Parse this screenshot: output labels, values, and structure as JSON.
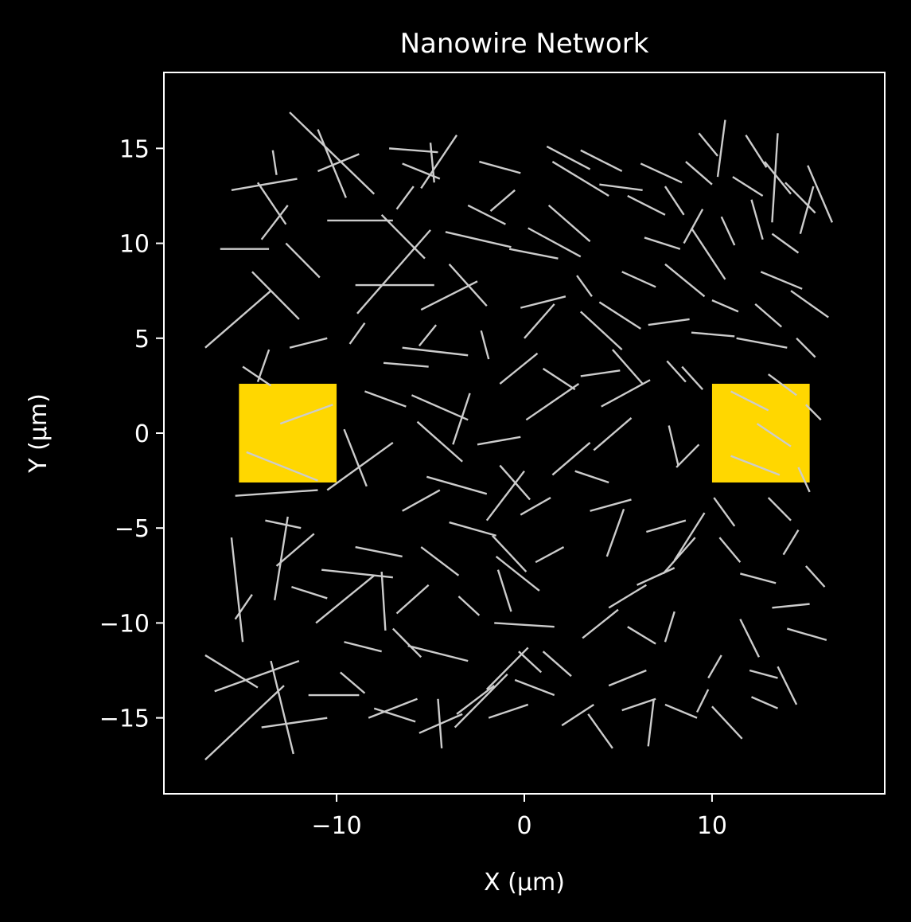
{
  "chart_data": {
    "type": "scatter",
    "title": "Nanowire Network",
    "xlabel": "X (µm)",
    "ylabel": "Y (µm)",
    "xlim": [
      -19.2,
      19.2
    ],
    "ylim": [
      -19.0,
      19.0
    ],
    "xticks": [
      -10,
      0,
      10
    ],
    "xtick_labels": [
      "−10",
      "0",
      "10"
    ],
    "yticks": [
      15,
      10,
      5,
      0,
      -5,
      -10,
      -15
    ],
    "ytick_labels": [
      "15",
      "10",
      "5",
      "0",
      "−5",
      "−10",
      "−15"
    ],
    "grid": false,
    "colors": {
      "background": "#000000",
      "axes": "#ffffff",
      "wire": "#cccccc",
      "electrode": "#ffd700"
    },
    "electrodes": [
      {
        "x": [
          -15.2,
          -10.0
        ],
        "y": [
          -2.6,
          2.6
        ]
      },
      {
        "x": [
          10.0,
          15.2
        ],
        "y": [
          -2.6,
          2.6
        ]
      }
    ],
    "wires": [
      [
        -12.5,
        16.9,
        -8.0,
        12.6
      ],
      [
        -11.0,
        16.0,
        -9.5,
        12.4
      ],
      [
        -7.2,
        15.0,
        -4.6,
        14.8
      ],
      [
        -13.4,
        14.9,
        -13.2,
        13.6
      ],
      [
        -14.2,
        13.2,
        -12.7,
        11.0
      ],
      [
        -15.6,
        12.8,
        -12.1,
        13.4
      ],
      [
        -16.2,
        9.7,
        -13.6,
        9.7
      ],
      [
        -14.5,
        8.5,
        -12.0,
        6.0
      ],
      [
        -17.0,
        4.5,
        -13.5,
        7.5
      ],
      [
        -15.0,
        3.5,
        -13.5,
        2.5
      ],
      [
        -12.5,
        4.5,
        -10.5,
        5.0
      ],
      [
        -13.0,
        0.5,
        -10.2,
        1.5
      ],
      [
        -14.8,
        -1.0,
        -11.0,
        -2.5
      ],
      [
        -15.4,
        -3.3,
        -11.0,
        -3.0
      ],
      [
        -12.6,
        -4.4,
        -13.3,
        -8.8
      ],
      [
        -15.6,
        -5.5,
        -15.0,
        -11.0
      ],
      [
        -17.0,
        -11.7,
        -14.2,
        -13.4
      ],
      [
        -16.5,
        -13.6,
        -12.0,
        -12.0
      ],
      [
        -17.0,
        -17.2,
        -12.8,
        -13.3
      ],
      [
        -13.5,
        -12.0,
        -12.3,
        -16.9
      ],
      [
        -11.5,
        -13.8,
        -8.8,
        -13.8
      ],
      [
        -14.0,
        -15.5,
        -10.5,
        -15.0
      ],
      [
        -9.8,
        -12.6,
        -8.5,
        -13.7
      ],
      [
        -11.1,
        -10.0,
        -8.0,
        -7.5
      ],
      [
        -9.0,
        -6.0,
        -6.5,
        -6.5
      ],
      [
        -10.8,
        -7.2,
        -7.0,
        -7.6
      ],
      [
        -7.6,
        -7.3,
        -7.4,
        -10.4
      ],
      [
        -10.5,
        -3.0,
        -7.0,
        -0.5
      ],
      [
        -8.5,
        2.2,
        -6.3,
        1.4
      ],
      [
        -9.3,
        4.7,
        -8.5,
        5.8
      ],
      [
        -8.9,
        6.3,
        -5.0,
        10.7
      ],
      [
        -9.0,
        7.8,
        -4.8,
        7.8
      ],
      [
        -10.5,
        11.2,
        -7.0,
        11.2
      ],
      [
        -11.0,
        13.8,
        -8.8,
        14.7
      ],
      [
        -7.6,
        11.5,
        -5.3,
        9.2
      ],
      [
        -6.5,
        14.2,
        -4.5,
        13.4
      ],
      [
        -5.0,
        15.3,
        -4.8,
        13.2
      ],
      [
        -3.6,
        15.7,
        -5.5,
        12.9
      ],
      [
        -2.4,
        14.3,
        -0.2,
        13.7
      ],
      [
        -3.0,
        12.0,
        -1.0,
        11.0
      ],
      [
        -4.2,
        10.6,
        -0.7,
        9.8
      ],
      [
        -4.0,
        8.9,
        -2.0,
        6.7
      ],
      [
        -5.5,
        6.5,
        -2.5,
        8.0
      ],
      [
        -6.5,
        4.5,
        -3.0,
        4.1
      ],
      [
        -7.5,
        3.7,
        -5.1,
        3.5
      ],
      [
        -6.0,
        2.0,
        -3.0,
        0.7
      ],
      [
        -5.7,
        0.6,
        -3.3,
        -1.5
      ],
      [
        -5.2,
        -2.3,
        -2.0,
        -3.2
      ],
      [
        -4.0,
        -4.7,
        -1.5,
        -5.4
      ],
      [
        -6.5,
        -4.1,
        -4.5,
        -3.0
      ],
      [
        -5.5,
        -6.0,
        -3.5,
        -7.5
      ],
      [
        -6.8,
        -9.5,
        -5.1,
        -8.0
      ],
      [
        -7.0,
        -10.3,
        -5.5,
        -11.8
      ],
      [
        -6.2,
        -11.2,
        -3.0,
        -12.0
      ],
      [
        -8.0,
        -14.5,
        -5.8,
        -15.2
      ],
      [
        -8.3,
        -15.0,
        -5.7,
        -14.0
      ],
      [
        -5.6,
        -15.8,
        -3.3,
        -14.8
      ],
      [
        -4.4,
        -16.6,
        -4.6,
        -14.0
      ],
      [
        -3.6,
        -14.8,
        -1.6,
        -13.3
      ],
      [
        -3.7,
        -15.5,
        -0.9,
        -12.7
      ],
      [
        -2.0,
        -13.5,
        0.2,
        -11.3
      ],
      [
        -1.6,
        -10.0,
        1.6,
        -10.2
      ],
      [
        -0.7,
        -9.4,
        -1.4,
        -7.2
      ],
      [
        0.1,
        -7.3,
        -1.7,
        -5.4
      ],
      [
        -1.5,
        -6.5,
        0.8,
        -8.3
      ],
      [
        -0.2,
        -4.3,
        1.4,
        -3.4
      ],
      [
        -2.0,
        -4.6,
        0.0,
        -2.0
      ],
      [
        -2.5,
        -0.6,
        -0.2,
        -0.2
      ],
      [
        0.1,
        0.7,
        2.9,
        2.6
      ],
      [
        -1.3,
        2.6,
        0.7,
        4.2
      ],
      [
        0.0,
        5.0,
        1.6,
        6.8
      ],
      [
        -0.2,
        6.6,
        2.2,
        7.2
      ],
      [
        -0.8,
        9.7,
        1.8,
        9.2
      ],
      [
        0.2,
        10.8,
        3.0,
        9.3
      ],
      [
        1.3,
        12.0,
        3.5,
        10.1
      ],
      [
        1.5,
        14.3,
        4.5,
        12.5
      ],
      [
        1.2,
        15.1,
        3.5,
        13.9
      ],
      [
        3.0,
        14.9,
        5.2,
        13.8
      ],
      [
        4.0,
        13.1,
        6.3,
        12.8
      ],
      [
        5.5,
        12.5,
        7.5,
        11.5
      ],
      [
        6.2,
        14.2,
        8.4,
        13.2
      ],
      [
        7.5,
        13.0,
        8.5,
        11.5
      ],
      [
        8.6,
        14.3,
        10.0,
        13.1
      ],
      [
        9.3,
        15.8,
        10.3,
        14.6
      ],
      [
        10.7,
        16.5,
        10.3,
        13.5
      ],
      [
        11.8,
        15.7,
        12.9,
        14.0
      ],
      [
        12.8,
        14.3,
        14.2,
        12.6
      ],
      [
        13.5,
        15.8,
        13.2,
        11.1
      ],
      [
        13.9,
        13.2,
        15.5,
        11.6
      ],
      [
        15.1,
        14.1,
        16.4,
        11.1
      ],
      [
        15.4,
        13.0,
        14.7,
        10.5
      ],
      [
        13.2,
        10.5,
        14.6,
        9.5
      ],
      [
        12.1,
        12.3,
        12.7,
        10.2
      ],
      [
        11.1,
        13.5,
        12.7,
        12.5
      ],
      [
        10.5,
        11.4,
        11.2,
        9.9
      ],
      [
        9.5,
        11.8,
        8.5,
        10.0
      ],
      [
        8.9,
        10.8,
        10.7,
        8.1
      ],
      [
        7.5,
        8.9,
        9.6,
        7.2
      ],
      [
        6.4,
        10.3,
        8.3,
        9.7
      ],
      [
        5.2,
        8.5,
        7.0,
        7.7
      ],
      [
        4.0,
        6.9,
        6.2,
        5.5
      ],
      [
        2.8,
        8.3,
        3.6,
        7.2
      ],
      [
        3.0,
        6.4,
        5.2,
        4.4
      ],
      [
        4.7,
        4.4,
        6.3,
        2.6
      ],
      [
        6.6,
        5.7,
        8.8,
        6.0
      ],
      [
        7.6,
        3.8,
        8.6,
        2.7
      ],
      [
        8.9,
        5.3,
        11.2,
        5.1
      ],
      [
        10.0,
        7.0,
        11.4,
        6.4
      ],
      [
        11.3,
        5.0,
        14.0,
        4.5
      ],
      [
        12.3,
        6.8,
        13.7,
        5.6
      ],
      [
        12.6,
        8.5,
        14.8,
        7.6
      ],
      [
        14.2,
        7.5,
        16.2,
        6.1
      ],
      [
        14.5,
        5.0,
        15.5,
        4.0
      ],
      [
        13.0,
        3.1,
        14.5,
        2.0
      ],
      [
        11.0,
        2.2,
        13.0,
        1.2
      ],
      [
        12.4,
        0.5,
        14.2,
        -0.7
      ],
      [
        11.0,
        -1.2,
        13.6,
        -2.2
      ],
      [
        13.0,
        -3.4,
        14.2,
        -4.6
      ],
      [
        10.1,
        -3.4,
        11.2,
        -4.9
      ],
      [
        9.6,
        -4.2,
        8.0,
        -6.7
      ],
      [
        10.4,
        -5.5,
        11.5,
        -6.8
      ],
      [
        11.5,
        -7.4,
        13.4,
        -7.9
      ],
      [
        13.8,
        -6.4,
        14.6,
        -5.1
      ],
      [
        15.0,
        -7.0,
        16.0,
        -8.1
      ],
      [
        13.2,
        -9.2,
        15.2,
        -9.0
      ],
      [
        14.0,
        -10.3,
        16.1,
        -10.9
      ],
      [
        11.5,
        -9.8,
        12.5,
        -11.8
      ],
      [
        10.5,
        -11.7,
        9.8,
        -12.9
      ],
      [
        12.0,
        -12.5,
        13.5,
        -12.9
      ],
      [
        13.5,
        -12.3,
        14.5,
        -14.3
      ],
      [
        12.1,
        -13.9,
        13.5,
        -14.5
      ],
      [
        10.0,
        -14.4,
        11.6,
        -16.1
      ],
      [
        9.2,
        -14.7,
        9.8,
        -13.5
      ],
      [
        7.5,
        -14.3,
        9.2,
        -15.0
      ],
      [
        6.6,
        -16.5,
        6.9,
        -14.0
      ],
      [
        5.2,
        -14.6,
        7.0,
        -14.0
      ],
      [
        4.5,
        -13.3,
        6.5,
        -12.5
      ],
      [
        3.4,
        -14.8,
        4.7,
        -16.6
      ],
      [
        2.0,
        -15.4,
        3.7,
        -14.3
      ],
      [
        1.6,
        -13.8,
        -0.5,
        -13.0
      ],
      [
        0.2,
        -14.3,
        -1.9,
        -15.0
      ],
      [
        2.5,
        -12.8,
        1.0,
        -11.5
      ],
      [
        3.1,
        -10.8,
        5.0,
        -9.3
      ],
      [
        4.5,
        -9.2,
        6.5,
        -8.0
      ],
      [
        5.5,
        -10.2,
        7.0,
        -11.1
      ],
      [
        6.0,
        -8.0,
        8.0,
        -7.1
      ],
      [
        7.4,
        -7.4,
        9.1,
        -5.5
      ],
      [
        6.5,
        -5.2,
        8.6,
        -4.6
      ],
      [
        4.4,
        -6.5,
        5.3,
        -4.0
      ],
      [
        3.5,
        -4.1,
        5.7,
        -3.5
      ],
      [
        2.7,
        -2.0,
        4.5,
        -2.6
      ],
      [
        1.5,
        -2.2,
        3.5,
        -0.5
      ],
      [
        3.7,
        -0.9,
        5.7,
        0.8
      ],
      [
        4.1,
        1.4,
        6.7,
        2.8
      ],
      [
        3.0,
        3.0,
        5.1,
        3.3
      ],
      [
        1.0,
        3.4,
        2.7,
        2.3
      ],
      [
        -1.8,
        11.7,
        -0.5,
        12.8
      ],
      [
        -13.8,
        -4.6,
        -11.9,
        -5.0
      ],
      [
        -10.5,
        -8.7,
        -12.4,
        -8.1
      ],
      [
        -9.6,
        -11.0,
        -7.6,
        -11.5
      ],
      [
        -11.2,
        -5.3,
        -13.2,
        -7.0
      ],
      [
        -9.6,
        0.2,
        -8.4,
        -2.8
      ],
      [
        -12.7,
        10.0,
        -10.9,
        8.2
      ],
      [
        -12.6,
        12.0,
        -14.0,
        10.2
      ],
      [
        -6.8,
        11.8,
        -5.9,
        13.0
      ],
      [
        -4.7,
        5.7,
        -5.6,
        4.6
      ],
      [
        -2.3,
        5.4,
        -1.9,
        3.9
      ],
      [
        -2.9,
        2.1,
        -3.8,
        -0.6
      ],
      [
        0.3,
        -3.5,
        -1.3,
        -1.7
      ],
      [
        -0.3,
        -11.5,
        0.9,
        -12.6
      ],
      [
        8.0,
        -9.4,
        7.5,
        -11.0
      ],
      [
        8.1,
        -1.8,
        9.3,
        -0.6
      ],
      [
        7.7,
        0.4,
        8.2,
        -1.7
      ],
      [
        9.5,
        2.3,
        8.4,
        3.5
      ],
      [
        15.0,
        1.5,
        15.8,
        0.7
      ],
      [
        14.6,
        -1.8,
        15.2,
        -3.1
      ],
      [
        -14.2,
        2.7,
        -13.6,
        4.4
      ],
      [
        -14.5,
        -8.5,
        -15.4,
        -9.8
      ],
      [
        -3.5,
        -8.6,
        -2.4,
        -9.6
      ],
      [
        2.1,
        -6.0,
        0.6,
        -6.8
      ]
    ]
  }
}
